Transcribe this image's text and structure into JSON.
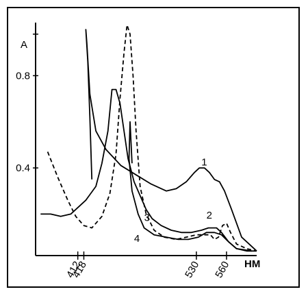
{
  "chart_data": {
    "type": "line",
    "title": "",
    "ylabel": "A",
    "xunit": "HM",
    "xlim": [
      370,
      590
    ],
    "ylim": [
      0.02,
      1.03
    ],
    "yticks": [
      {
        "value": 0.98,
        "label": ""
      },
      {
        "value": 0.8,
        "label": "0.8"
      },
      {
        "value": 0.4,
        "label": "0.4"
      }
    ],
    "xticks": [
      {
        "value": 412,
        "label": "412"
      },
      {
        "value": 418,
        "label": "418"
      },
      {
        "value": 530,
        "label": "530"
      },
      {
        "value": 560,
        "label": "560"
      }
    ],
    "series": [
      {
        "name": "1",
        "dash": "none",
        "label_at": [
          535,
          0.41
        ],
        "points": [
          [
            426,
            0.35
          ],
          [
            424,
            0.62
          ],
          [
            422,
            0.86
          ],
          [
            420,
            1.0
          ],
          [
            421,
            0.94
          ],
          [
            424,
            0.72
          ],
          [
            430,
            0.56
          ],
          [
            440,
            0.48
          ],
          [
            455,
            0.41
          ],
          [
            470,
            0.37
          ],
          [
            485,
            0.33
          ],
          [
            500,
            0.3
          ],
          [
            510,
            0.31
          ],
          [
            520,
            0.34
          ],
          [
            528,
            0.38
          ],
          [
            533,
            0.4
          ],
          [
            538,
            0.4
          ],
          [
            543,
            0.38
          ],
          [
            548,
            0.35
          ],
          [
            553,
            0.34
          ],
          [
            558,
            0.3
          ],
          [
            565,
            0.22
          ],
          [
            575,
            0.1
          ],
          [
            590,
            0.04
          ]
        ]
      },
      {
        "name": "2",
        "dash": "none",
        "label_at": [
          540,
          0.18
        ],
        "points": [
          [
            375,
            0.2
          ],
          [
            385,
            0.2
          ],
          [
            395,
            0.19
          ],
          [
            405,
            0.2
          ],
          [
            420,
            0.26
          ],
          [
            430,
            0.32
          ],
          [
            436,
            0.42
          ],
          [
            442,
            0.56
          ],
          [
            446,
            0.74
          ],
          [
            450,
            0.74
          ],
          [
            454,
            0.68
          ],
          [
            458,
            0.56
          ],
          [
            462,
            0.44
          ],
          [
            468,
            0.34
          ],
          [
            474,
            0.28
          ],
          [
            480,
            0.22
          ],
          [
            486,
            0.18
          ],
          [
            495,
            0.15
          ],
          [
            505,
            0.13
          ],
          [
            515,
            0.12
          ],
          [
            525,
            0.12
          ],
          [
            535,
            0.13
          ],
          [
            542,
            0.14
          ],
          [
            550,
            0.14
          ],
          [
            555,
            0.12
          ],
          [
            562,
            0.08
          ],
          [
            570,
            0.05
          ],
          [
            580,
            0.04
          ],
          [
            590,
            0.04
          ]
        ]
      },
      {
        "name": "3",
        "dash": "none",
        "label_at": [
          478,
          0.17
        ],
        "points": [
          [
            466,
            0.42
          ],
          [
            464,
            0.6
          ],
          [
            463,
            0.44
          ],
          [
            466,
            0.3
          ],
          [
            472,
            0.2
          ],
          [
            478,
            0.14
          ],
          [
            488,
            0.11
          ],
          [
            500,
            0.1
          ],
          [
            512,
            0.09
          ],
          [
            522,
            0.09
          ],
          [
            532,
            0.1
          ],
          [
            540,
            0.12
          ],
          [
            548,
            0.12
          ],
          [
            555,
            0.11
          ],
          [
            562,
            0.08
          ],
          [
            570,
            0.05
          ],
          [
            585,
            0.04
          ]
        ]
      },
      {
        "name": "4",
        "dash": "6 4",
        "label_at": [
          468,
          0.08
        ],
        "points": [
          [
            382,
            0.47
          ],
          [
            392,
            0.36
          ],
          [
            402,
            0.26
          ],
          [
            410,
            0.19
          ],
          [
            418,
            0.15
          ],
          [
            426,
            0.14
          ],
          [
            436,
            0.19
          ],
          [
            444,
            0.29
          ],
          [
            450,
            0.46
          ],
          [
            454,
            0.7
          ],
          [
            458,
            0.9
          ],
          [
            461,
            1.02
          ],
          [
            464,
            0.98
          ],
          [
            467,
            0.8
          ],
          [
            470,
            0.56
          ],
          [
            474,
            0.32
          ],
          [
            480,
            0.2
          ],
          [
            488,
            0.13
          ],
          [
            498,
            0.1
          ],
          [
            510,
            0.09
          ],
          [
            520,
            0.1
          ],
          [
            530,
            0.11
          ],
          [
            538,
            0.11
          ],
          [
            544,
            0.11
          ],
          [
            548,
            0.09
          ],
          [
            552,
            0.1
          ],
          [
            556,
            0.15
          ],
          [
            560,
            0.16
          ],
          [
            564,
            0.12
          ],
          [
            570,
            0.07
          ],
          [
            580,
            0.05
          ],
          [
            590,
            0.04
          ]
        ]
      }
    ]
  }
}
